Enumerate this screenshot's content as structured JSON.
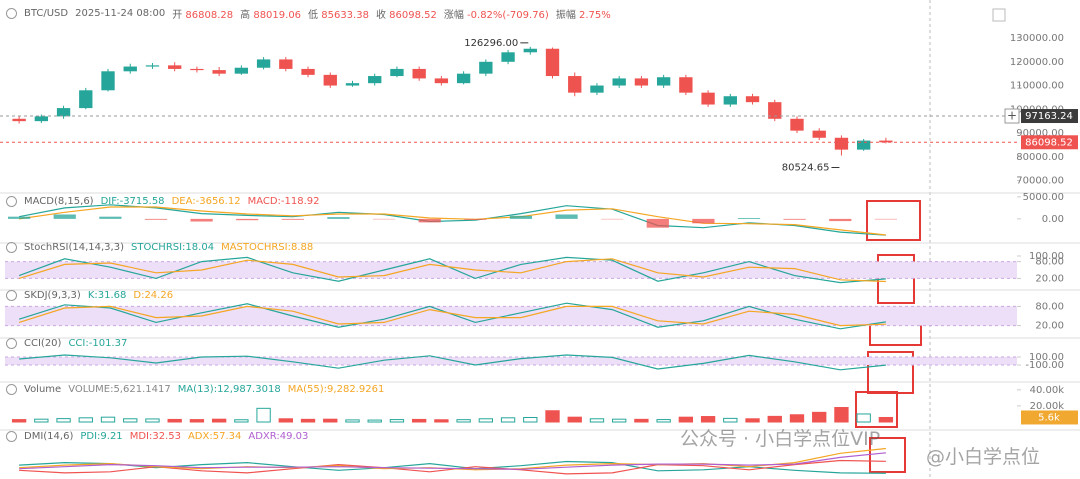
{
  "header": {
    "symbol": "BTC/USD",
    "time": "2025-11-24 08:00",
    "open_label": "开",
    "high_label": "高",
    "low_label": "低",
    "close_label": "收",
    "change_label": "涨幅",
    "change": "-0.82%(-709.76)",
    "amplitude_label": "振幅",
    "amplitude": "2.75%"
  },
  "watermark": {
    "account": "公众号 · 小白学点位VIP",
    "handle": "@小白学点位"
  },
  "chart_data": [
    {
      "type": "candlestick",
      "up_color": "#26a69a",
      "down_color": "#ef5350",
      "open": [
        96000,
        95000,
        97000,
        100500,
        108000,
        116000,
        118000,
        118500,
        117000,
        116500,
        115000,
        117500,
        121000,
        117000,
        114500,
        110000,
        111000,
        114000,
        117000,
        113000,
        111000,
        115000,
        120000,
        124000,
        125500,
        114000,
        107000,
        110000,
        113000,
        110000,
        113500,
        107000,
        102000,
        105500,
        103000,
        96000,
        91000,
        88000,
        83000,
        86808.28
      ],
      "high": [
        97000,
        97800,
        101500,
        109000,
        117000,
        119200,
        119500,
        119800,
        118000,
        117800,
        118500,
        122000,
        122000,
        118000,
        115500,
        112000,
        115000,
        118000,
        118000,
        114000,
        116000,
        121000,
        125000,
        126296,
        126000,
        115500,
        111000,
        114000,
        114000,
        114500,
        114500,
        108000,
        106500,
        106500,
        104000,
        97000,
        92000,
        89000,
        87500,
        88019.06
      ],
      "low": [
        94000,
        94200,
        96000,
        100000,
        107500,
        115000,
        117000,
        116000,
        115500,
        114000,
        114500,
        116800,
        116000,
        113500,
        109000,
        109500,
        110000,
        113500,
        112000,
        110000,
        110500,
        114000,
        119000,
        123000,
        113000,
        105500,
        106000,
        109000,
        109000,
        109000,
        106000,
        101000,
        101000,
        102000,
        95000,
        90000,
        87000,
        80524.65,
        82500,
        85633.38
      ],
      "close": [
        95000,
        97000,
        100500,
        108000,
        116000,
        118000,
        118500,
        117000,
        116500,
        115000,
        117500,
        121000,
        117000,
        114500,
        110000,
        111000,
        114000,
        117000,
        113000,
        111000,
        115000,
        120000,
        124000,
        125500,
        114000,
        107000,
        110000,
        113000,
        110000,
        113500,
        107000,
        102000,
        105500,
        103000,
        96000,
        91000,
        88000,
        83000,
        86808.28,
        86098.52
      ],
      "ylim": [
        66000,
        135500
      ],
      "yticks": [
        {
          "value": 70000,
          "label": "70000.00"
        },
        {
          "value": 80000,
          "label": "80000.00"
        },
        {
          "value": 90000,
          "label": "90000.00"
        },
        {
          "value": 100000,
          "label": "100000.00"
        },
        {
          "value": 110000,
          "label": "110000.00"
        },
        {
          "value": 120000,
          "label": "120000.00"
        },
        {
          "value": 130000,
          "label": "130000.00"
        }
      ],
      "max_label": "126296.00",
      "min_label": "80524.65",
      "crosshair_price": {
        "value": 97163.24,
        "label": "97163.24"
      },
      "last_price": {
        "value": 86098.52,
        "label": "86098.52"
      }
    },
    {
      "type": "line",
      "title": "MACD(8,15,6)",
      "ylim": [
        -4800,
        5200
      ],
      "yticks": [
        {
          "value": 0,
          "label": "0.00"
        },
        {
          "value": 5000,
          "label": "5000.00"
        }
      ],
      "up_color": "#26a69a",
      "down_color": "#ef5350",
      "series": [
        {
          "name": "DIF:-3715.58",
          "color": "#26a69a",
          "values": [
            500,
            2500,
            3200,
            2500,
            1200,
            800,
            500,
            1500,
            1000,
            -600,
            -300,
            1200,
            3000,
            2200,
            -1500,
            -2000,
            -900,
            -1500,
            -3000,
            -3715.58
          ]
        },
        {
          "name": "DEA:-3656.12",
          "color": "#f5a623",
          "values": [
            0,
            1500,
            2700,
            2700,
            1800,
            1100,
            700,
            1100,
            1100,
            200,
            -100,
            500,
            2000,
            2300,
            500,
            -1000,
            -1100,
            -1300,
            -2500,
            -3656.12
          ]
        },
        {
          "name": "MACD:-118.92",
          "color": "#ef5350",
          "kind": "bar",
          "values": [
            500,
            1000,
            500,
            -200,
            -600,
            -300,
            -200,
            400,
            -100,
            -800,
            -200,
            700,
            1000,
            -100,
            -2000,
            -1000,
            200,
            -200,
            -500,
            -118.92
          ]
        }
      ]
    },
    {
      "type": "line",
      "title": "StochRSI(14,14,3,3)",
      "ylim": [
        0,
        100
      ],
      "yticks": [
        {
          "value": 20,
          "label": "20.00"
        },
        {
          "value": 80,
          "label": "80.00"
        },
        {
          "value": 100,
          "label": "100.00"
        }
      ],
      "band": [
        20,
        80
      ],
      "series": [
        {
          "name": "STOCHRSI:18.04",
          "color": "#26a69a",
          "values": [
            30,
            90,
            60,
            20,
            80,
            95,
            40,
            10,
            50,
            90,
            20,
            70,
            95,
            85,
            10,
            40,
            80,
            30,
            5,
            18.04
          ]
        },
        {
          "name": "MASTOCHRSI:8.88",
          "color": "#f5a623",
          "values": [
            20,
            70,
            75,
            40,
            50,
            85,
            70,
            25,
            30,
            70,
            50,
            40,
            80,
            90,
            40,
            25,
            60,
            55,
            15,
            8.88
          ]
        }
      ]
    },
    {
      "type": "line",
      "title": "SKDJ(9,3,3)",
      "ylim": [
        0,
        100
      ],
      "yticks": [
        {
          "value": 20,
          "label": "20.00"
        },
        {
          "value": 80,
          "label": "80.00"
        }
      ],
      "band": [
        20,
        80
      ],
      "series": [
        {
          "name": "K:31.68",
          "color": "#26a69a",
          "values": [
            40,
            85,
            75,
            30,
            60,
            88,
            50,
            15,
            40,
            80,
            30,
            60,
            90,
            70,
            15,
            35,
            80,
            40,
            10,
            31.68
          ]
        },
        {
          "name": "D:24.26",
          "color": "#f5a623",
          "values": [
            30,
            75,
            80,
            45,
            50,
            80,
            65,
            25,
            30,
            70,
            45,
            45,
            80,
            80,
            35,
            25,
            65,
            55,
            20,
            24.26
          ]
        }
      ]
    },
    {
      "type": "line",
      "title": "CCI(20)",
      "ylim": [
        -425,
        325
      ],
      "yticks": [
        {
          "value": -100,
          "label": "-100.00"
        },
        {
          "value": 100,
          "label": "100.00"
        }
      ],
      "band": [
        -100,
        100
      ],
      "series": [
        {
          "name": "CCI:-101.37",
          "color": "#26a69a",
          "values": [
            50,
            150,
            80,
            -50,
            100,
            120,
            -20,
            -180,
            20,
            130,
            -100,
            60,
            150,
            90,
            -200,
            -60,
            140,
            -20,
            -220,
            -101.37
          ]
        }
      ]
    },
    {
      "type": "bar",
      "title": "Volume",
      "ylim": [
        0,
        46000
      ],
      "yticks": [
        {
          "value": 20000,
          "label": "20.00k"
        },
        {
          "value": 40000,
          "label": "40.00k"
        }
      ],
      "series": [
        {
          "name": "VOLUME:5,621.1417",
          "color": "#888888",
          "values": [
            3000,
            3500,
            4200,
            5200,
            6000,
            4000,
            3800,
            3200,
            3000,
            3500,
            2800,
            17000,
            4000,
            3300,
            3500,
            2600,
            2400,
            3000,
            3200,
            2800,
            2900,
            4000,
            5200,
            5600,
            14000,
            6000,
            4000,
            3500,
            3300,
            3000,
            6000,
            6800,
            4500,
            4000,
            7000,
            9000,
            12000,
            18000,
            10000,
            5621.1417
          ]
        }
      ],
      "legend": [
        {
          "name": "MA(13):12,987.3018",
          "color": "#26a69a"
        },
        {
          "name": "MA(55):9,282.9261",
          "color": "#f5a623"
        }
      ],
      "last_value": {
        "value": 5621.1417,
        "label": "5.6k"
      }
    },
    {
      "type": "line",
      "title": "DMI(14,6)",
      "ylim": [
        0,
        70
      ],
      "yticks": [],
      "series": [
        {
          "name": "PDI:9.21",
          "color": "#26a69a",
          "values": [
            25,
            30,
            28,
            20,
            26,
            30,
            22,
            15,
            20,
            28,
            18,
            24,
            32,
            30,
            14,
            16,
            22,
            15,
            10,
            9.21
          ]
        },
        {
          "name": "MDI:32.53",
          "color": "#ef5350",
          "values": [
            15,
            10,
            12,
            22,
            14,
            10,
            18,
            26,
            20,
            12,
            22,
            16,
            8,
            10,
            26,
            24,
            16,
            26,
            34,
            32.53
          ]
        },
        {
          "name": "ADX:57.34",
          "color": "#f5a623",
          "values": [
            20,
            25,
            28,
            22,
            18,
            22,
            20,
            24,
            18,
            20,
            16,
            18,
            25,
            28,
            26,
            28,
            22,
            30,
            48,
            57.34
          ]
        },
        {
          "name": "ADXR:49.03",
          "color": "#b05fd0",
          "values": [
            18,
            22,
            26,
            24,
            20,
            21,
            21,
            22,
            20,
            19,
            18,
            17,
            21,
            25,
            27,
            27,
            25,
            27,
            40,
            49.03
          ]
        }
      ]
    }
  ]
}
